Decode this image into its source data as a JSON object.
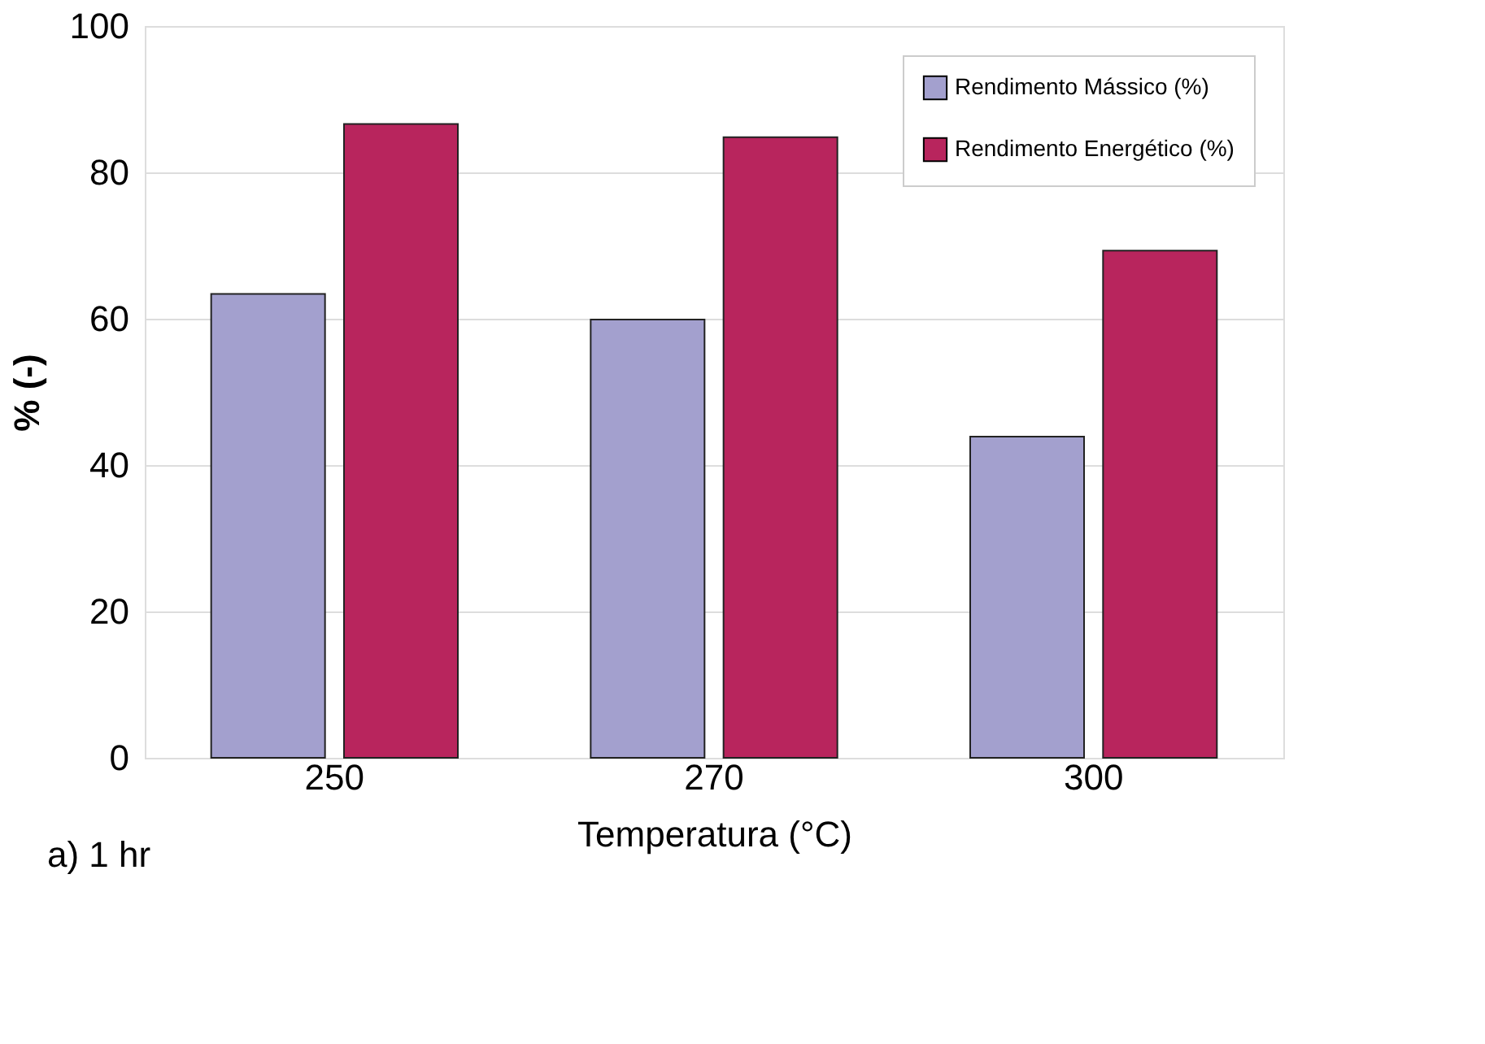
{
  "chart_data": {
    "type": "bar",
    "categories": [
      "250",
      "270",
      "300"
    ],
    "series": [
      {
        "name": "Rendimento Mássico (%)",
        "color": "#a3a0ce",
        "values": [
          63.4,
          59.9,
          43.9
        ]
      },
      {
        "name": "Rendimento Energético (%)",
        "color": "#b8255d",
        "values": [
          86.6,
          84.8,
          69.3
        ]
      }
    ],
    "xlabel": "Temperatura (°C)",
    "ylabel": "% (-)",
    "ylim": [
      0,
      100
    ],
    "yticks": [
      0,
      20,
      40,
      60,
      80,
      100
    ],
    "grid": "y",
    "legend": "top right",
    "annotations": [
      "a) 1 hr"
    ]
  }
}
